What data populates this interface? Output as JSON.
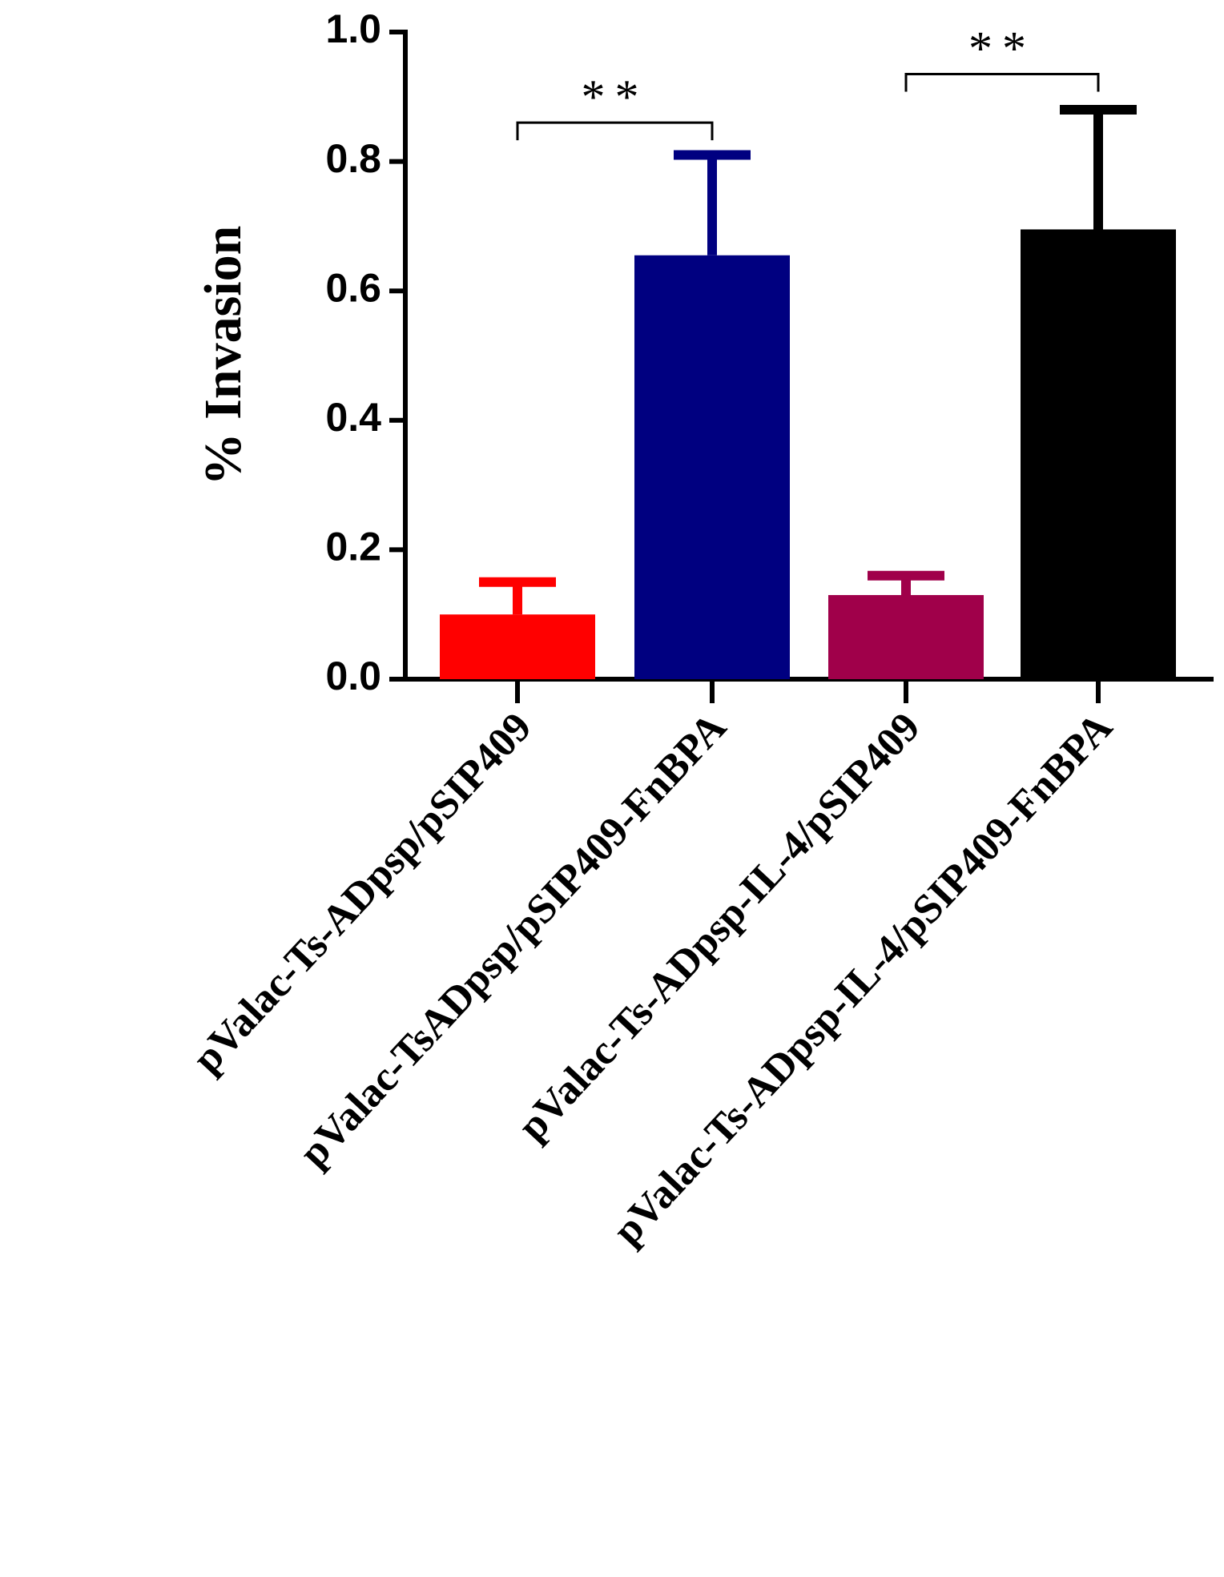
{
  "chart_data": {
    "type": "bar",
    "y_label": "% Invasion",
    "categories": [
      "pValac-Ts-ADpsp/pSIP409",
      "pValac-TsADpsp/pSIP409-FnBPA",
      "pValac-Ts-ADpsp-IL-4/pSIP409",
      "pValac-Ts-ADpsp-IL-4/pSIP409-FnBPA"
    ],
    "values": [
      0.1,
      0.655,
      0.13,
      0.695
    ],
    "errors": [
      0.05,
      0.155,
      0.03,
      0.185
    ],
    "colors": [
      "#ff0000",
      "#000080",
      "#a0004a",
      "#000000"
    ],
    "ylim": [
      0,
      1.0
    ],
    "yticks": [
      {
        "value": 0,
        "label": "0.0"
      },
      {
        "value": 0.2,
        "label": "0.2"
      },
      {
        "value": 0.4,
        "label": "0.4"
      },
      {
        "value": 0.6,
        "label": "0.6"
      },
      {
        "value": 0.8,
        "label": "0.8"
      },
      {
        "value": 1.0,
        "label": "1.0"
      }
    ],
    "annotations": [
      {
        "text": "**",
        "y": 0.86
      },
      {
        "text": "**",
        "y": 0.935
      }
    ]
  }
}
